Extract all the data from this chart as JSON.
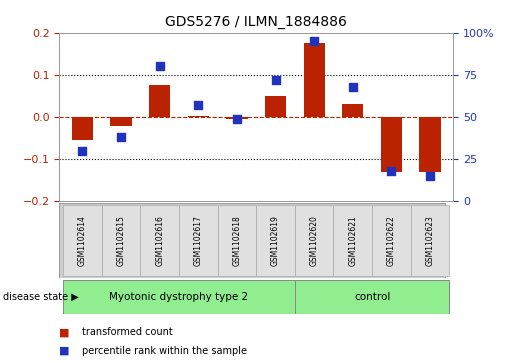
{
  "title": "GDS5276 / ILMN_1884886",
  "samples": [
    "GSM1102614",
    "GSM1102615",
    "GSM1102616",
    "GSM1102617",
    "GSM1102618",
    "GSM1102619",
    "GSM1102620",
    "GSM1102621",
    "GSM1102622",
    "GSM1102623"
  ],
  "transformed_count": [
    -0.055,
    -0.02,
    0.075,
    0.003,
    -0.005,
    0.05,
    0.175,
    0.03,
    -0.13,
    -0.13
  ],
  "percentile_rank": [
    30,
    38,
    80,
    57,
    49,
    72,
    95,
    68,
    18,
    15
  ],
  "bar_color": "#bb2200",
  "dot_color": "#2233bb",
  "left_ylim": [
    -0.2,
    0.2
  ],
  "right_ylim": [
    0,
    100
  ],
  "left_yticks": [
    -0.2,
    -0.1,
    0.0,
    0.1,
    0.2
  ],
  "right_yticks": [
    0,
    25,
    50,
    75,
    100
  ],
  "right_yticklabels": [
    "0",
    "25",
    "50",
    "75",
    "100%"
  ],
  "hline_dotted": [
    -0.1,
    0.1
  ],
  "disease_groups": [
    {
      "label": "Myotonic dystrophy type 2",
      "start": 0,
      "end": 6,
      "color": "#90ee90"
    },
    {
      "label": "control",
      "start": 6,
      "end": 10,
      "color": "#90ee90"
    }
  ],
  "disease_state_label": "disease state",
  "legend_items": [
    {
      "label": "transformed count",
      "color": "#bb2200"
    },
    {
      "label": "percentile rank within the sample",
      "color": "#2233bb"
    }
  ],
  "bar_width": 0.55,
  "dot_size": 35,
  "background_color": "#ffffff"
}
